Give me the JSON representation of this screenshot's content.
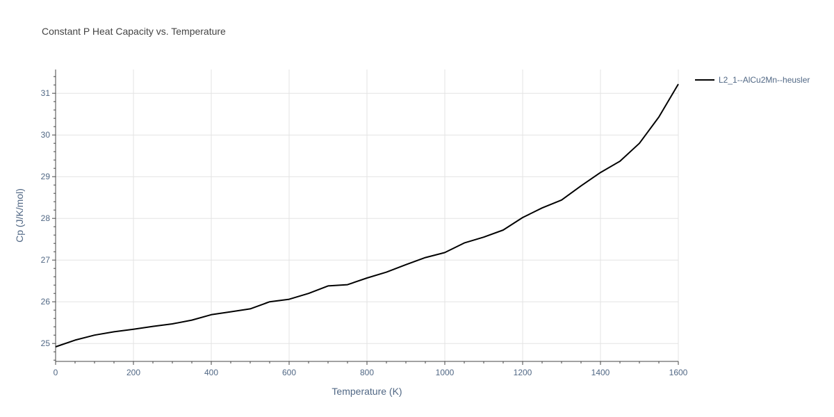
{
  "chart_data": {
    "type": "line",
    "title": "Constant P Heat Capacity vs. Temperature",
    "xlabel": "Temperature (K)",
    "ylabel": "Cp (J/K/mol)",
    "xlim": [
      0,
      1600
    ],
    "ylim": [
      24.57,
      31.57
    ],
    "xticks": [
      0,
      200,
      400,
      600,
      800,
      1000,
      1200,
      1400,
      1600
    ],
    "yticks": [
      25,
      26,
      27,
      28,
      29,
      30,
      31
    ],
    "grid": true,
    "legend_position": "top-right",
    "series": [
      {
        "name": "L2_1--AlCu2Mn--heusler",
        "color": "#000000",
        "x": [
          0,
          50,
          100,
          150,
          200,
          250,
          300,
          350,
          400,
          450,
          500,
          550,
          600,
          650,
          700,
          750,
          800,
          850,
          900,
          950,
          1000,
          1050,
          1100,
          1150,
          1200,
          1250,
          1300,
          1350,
          1400,
          1450,
          1500,
          1550,
          1600
        ],
        "y": [
          24.92,
          25.08,
          25.2,
          25.28,
          25.34,
          25.41,
          25.47,
          25.56,
          25.69,
          25.76,
          25.83,
          26.0,
          26.06,
          26.2,
          26.38,
          26.41,
          26.57,
          26.71,
          26.89,
          27.06,
          27.18,
          27.41,
          27.55,
          27.72,
          28.02,
          28.25,
          28.44,
          28.78,
          29.1,
          29.37,
          29.8,
          30.43,
          31.22
        ]
      }
    ]
  }
}
